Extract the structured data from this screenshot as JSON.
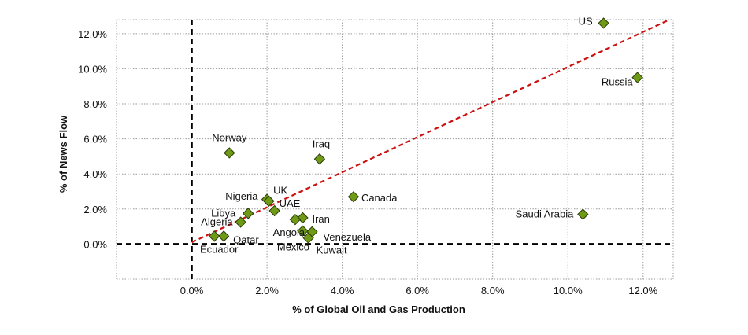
{
  "chart_data": {
    "type": "scatter",
    "title": "",
    "xlabel": "% of Global Oil and Gas Production",
    "ylabel": "% of News Flow",
    "xlim": [
      -2.0,
      12.8
    ],
    "ylim": [
      -2.0,
      12.8
    ],
    "xticks": [
      0,
      2,
      4,
      6,
      8,
      10,
      12
    ],
    "xtick_labels": [
      "0.0%",
      "2.0%",
      "4.0%",
      "6.0%",
      "8.0%",
      "10.0%",
      "12.0%"
    ],
    "yticks": [
      0,
      2,
      4,
      6,
      8,
      10,
      12
    ],
    "ytick_labels": [
      "0.0%",
      "2.0%",
      "4.0%",
      "6.0%",
      "8.0%",
      "10.0%",
      "12.0%"
    ],
    "grid": true,
    "legend": "none",
    "marker_color": "#6f9a16",
    "trendline": {
      "style": "dashed",
      "color": "#cc1111",
      "from": [
        0.0,
        0.1
      ],
      "to": [
        12.7,
        12.8
      ]
    },
    "reference_lines": {
      "x_zero": "black dashed",
      "y_zero": "black dashed"
    },
    "points": [
      {
        "label": "US",
        "x": 10.95,
        "y": 12.6
      },
      {
        "label": "Russia",
        "x": 11.85,
        "y": 9.5
      },
      {
        "label": "Saudi Arabia",
        "x": 10.4,
        "y": 1.7
      },
      {
        "label": "Norway",
        "x": 1.0,
        "y": 5.2
      },
      {
        "label": "Iraq",
        "x": 3.4,
        "y": 4.85
      },
      {
        "label": "Canada",
        "x": 4.3,
        "y": 2.7
      },
      {
        "label": "UK",
        "x": 2.0,
        "y": 2.55
      },
      {
        "label": "Nigeria",
        "x": 2.05,
        "y": 2.45
      },
      {
        "label": "UAE",
        "x": 2.2,
        "y": 1.9
      },
      {
        "label": "Libya",
        "x": 1.5,
        "y": 1.75
      },
      {
        "label": "Iran",
        "x": 2.95,
        "y": 1.5
      },
      {
        "label": "Angola",
        "x": 2.75,
        "y": 1.4
      },
      {
        "label": "Algeria",
        "x": 1.3,
        "y": 1.25
      },
      {
        "label": "Venezuela",
        "x": 3.2,
        "y": 0.7
      },
      {
        "label": "Mexico",
        "x": 2.95,
        "y": 0.75
      },
      {
        "label": "Kuwait",
        "x": 3.1,
        "y": 0.35
      },
      {
        "label": "Qatar",
        "x": 0.85,
        "y": 0.45
      },
      {
        "label": "Ecuador",
        "x": 0.6,
        "y": 0.45
      }
    ]
  }
}
